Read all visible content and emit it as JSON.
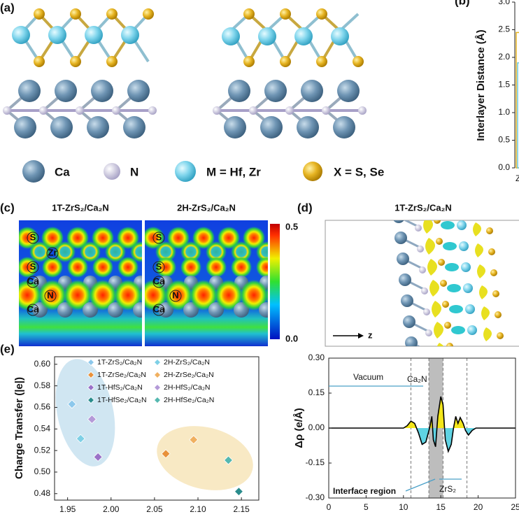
{
  "figure": {
    "panel_labels": [
      "(a)",
      "(b)",
      "(c)",
      "(d)",
      "(e)"
    ],
    "structure_legend": [
      "Ca",
      "N",
      "M = Hf, Zr",
      "X = S, Se"
    ],
    "contour_titles": [
      "1T-ZrS₂/Ca₂N",
      "2H-ZrS₂/Ca₂N"
    ],
    "contour_left_atoms": [
      "S",
      "Zr",
      "S",
      "Ca",
      "N",
      "Ca"
    ],
    "contour_right_atoms": [
      "S",
      "S",
      "Ca",
      "N",
      "Ca"
    ],
    "colorbar_ticks": [
      0.5,
      {
        "value": 0,
        "label": "0.0"
      }
    ],
    "diff_title": "1T-ZrS₂/Ca₂N",
    "axis_arrow_label": "z"
  },
  "chart_data": [
    {
      "type": "bar",
      "ylabel": "Interlayer Distance (Å)",
      "categories": [
        "Z"
      ],
      "series": [
        {
          "color": "#e6b422",
          "values": [
            2.45
          ]
        },
        {
          "color": "#6cc7dd",
          "values": [
            1.9
          ]
        }
      ],
      "ylim": [
        0,
        3
      ],
      "yticks": [
        {
          "value": 0,
          "label": "0.0"
        },
        0.5,
        {
          "value": 1,
          "label": "1.0"
        },
        1.5,
        {
          "value": 2,
          "label": "2.0"
        },
        2.5,
        {
          "value": 3,
          "label": "3.0"
        }
      ]
    },
    {
      "type": "line",
      "ylabel": "Δρ (e/Å)",
      "x": [
        0,
        5,
        10,
        10.5,
        11,
        11.5,
        12,
        12.5,
        13,
        13.5,
        13.8,
        14,
        14.3,
        14.6,
        15,
        15.3,
        15.6,
        16,
        16.4,
        16.7,
        17,
        17.3,
        17.6,
        18,
        18.3,
        18.7,
        19.2,
        19.7,
        25
      ],
      "series": [
        {
          "color": "#000000",
          "values": [
            0,
            0,
            0,
            0.01,
            0.03,
            0.02,
            -0.02,
            -0.07,
            -0.06,
            0,
            0.05,
            -0.05,
            -0.08,
            0.05,
            0.135,
            0.1,
            -0.05,
            -0.1,
            -0.07,
            0,
            0.05,
            0.02,
            0.045,
            0.02,
            -0.01,
            -0.03,
            -0.01,
            0,
            0
          ]
        }
      ],
      "positive_color": "#f3e61a",
      "negative_color": "#5fd3e3",
      "xlim": [
        0,
        25
      ],
      "xticks": [
        0,
        5,
        10,
        15,
        20,
        25
      ],
      "ylim": [
        -0.3,
        0.3
      ],
      "yticks": [
        {
          "value": -0.3,
          "label": "-0.30"
        },
        -0.15,
        {
          "value": 0,
          "label": "0.00"
        },
        0.15,
        {
          "value": 0.3,
          "label": "0.30"
        }
      ],
      "annotations": [
        "Vacuum",
        "Ca₂N",
        "ZrS₂",
        "Interface region"
      ],
      "reference_lines": [
        11,
        13.4,
        15.3,
        18.5
      ],
      "shaded_band": [
        13.4,
        15.3
      ]
    },
    {
      "type": "scatter",
      "ylabel": "Charge Transfer (|e|)",
      "series": [
        {
          "name": "1T-ZrS₂/Ca₂N",
          "color": "#8cc8ec",
          "x": [
            1.955
          ],
          "values": [
            0.563
          ]
        },
        {
          "name": "2H-ZrS₂/Ca₂N",
          "color": "#7fd0e6",
          "x": [
            1.965
          ],
          "values": [
            0.531
          ]
        },
        {
          "name": "1T-ZrSe₂/Ca₂N",
          "color": "#e8913a",
          "x": [
            2.063
          ],
          "values": [
            0.517
          ]
        },
        {
          "name": "2H-ZrSe₂/Ca₂N",
          "color": "#f0b060",
          "x": [
            2.095
          ],
          "values": [
            0.53
          ]
        },
        {
          "name": "1T-HfS₂/Ca₂N",
          "color": "#9a72c8",
          "x": [
            1.985
          ],
          "values": [
            0.514
          ]
        },
        {
          "name": "2H-HfS₂/Ca₂N",
          "color": "#b49ad8",
          "x": [
            1.978
          ],
          "values": [
            0.549
          ]
        },
        {
          "name": "1T-HfSe₂/Ca₂N",
          "color": "#2a8c8c",
          "x": [
            2.147
          ],
          "values": [
            0.482
          ]
        },
        {
          "name": "2H-HfSe₂/Ca₂N",
          "color": "#55b8b0",
          "x": [
            2.135
          ],
          "values": [
            0.511
          ]
        }
      ],
      "xlim": [
        1.935,
        2.17
      ],
      "xticks": [
        1.95,
        {
          "value": 2,
          "label": "2.00"
        },
        2.05,
        {
          "value": 2.1,
          "label": "2.10"
        },
        2.15
      ],
      "ylim": [
        0.474,
        0.607
      ],
      "yticks": [
        0.48,
        {
          "value": 0.5,
          "label": "0.50"
        },
        0.52,
        0.54,
        0.56,
        0.58,
        {
          "value": 0.6,
          "label": "0.60"
        }
      ]
    }
  ]
}
